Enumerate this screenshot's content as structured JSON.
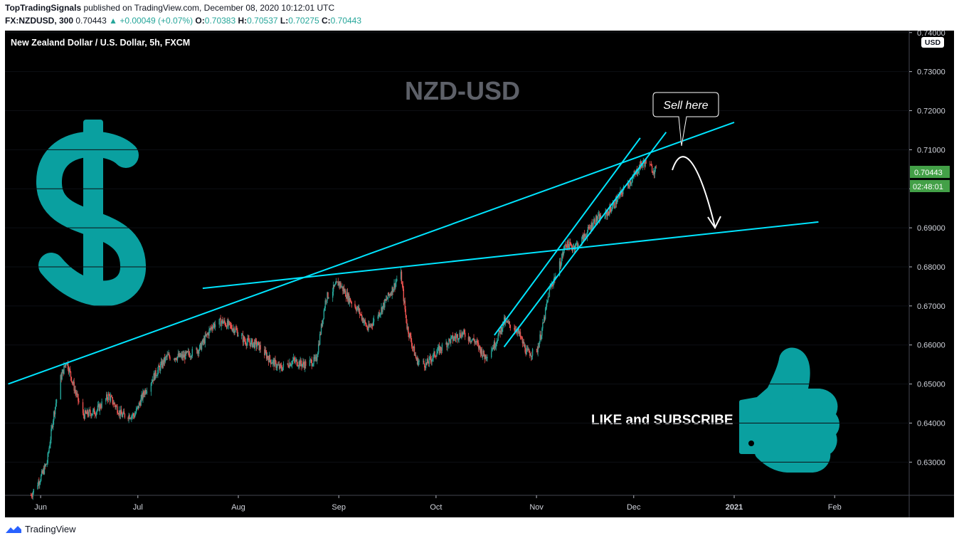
{
  "header": {
    "publisher": "TopTradingSignals",
    "published_text": " published on TradingView.com, December 08, 2020 10:12:01 UTC",
    "symbol_interval": "FX:NZDUSD, 300",
    "last": "0.70443",
    "change": "▲ +0.00049 (+0.07%)",
    "o_label": "O:",
    "o_val": "0.70383",
    "h_label": "H:",
    "h_val": "0.70537",
    "l_label": "L:",
    "l_val": "0.70275",
    "c_label": "C:",
    "c_val": "0.70443"
  },
  "chart_title": "New Zealand Dollar / U.S. Dollar, 5h, FXCM",
  "watermark": "NZD-USD",
  "callout": "Sell here",
  "promo": "LIKE and SUBSCRIBE",
  "currency_badge": "USD",
  "price_badge": "0.70443",
  "countdown_badge": "02:48:01",
  "footer_brand": "TradingView",
  "colors": {
    "background": "#000000",
    "up": "#26a69a",
    "down": "#ef5350",
    "trendline": "#00e5ff",
    "icon": "#0aa0a0",
    "badge": "#43a047"
  },
  "chart_data": {
    "type": "candlestick",
    "title": "New Zealand Dollar / U.S. Dollar, 5h, FXCM",
    "y_axis": {
      "min": 0.6215,
      "max": 0.7405,
      "ticks": [
        0.74,
        0.73,
        0.72,
        0.71,
        0.7,
        0.69,
        0.68,
        0.67,
        0.66,
        0.65,
        0.64,
        0.63
      ],
      "tick_labels": [
        "0.74000",
        "0.73000",
        "0.72000",
        "0.71000",
        "0.70000",
        "0.69000",
        "0.68000",
        "0.67000",
        "0.66000",
        "0.65000",
        "0.64000",
        "0.63000"
      ]
    },
    "x_axis": {
      "start": "2020-05-21",
      "end": "2021-02-24",
      "ticks": [
        {
          "label": "Jun",
          "date": "2020-06-01"
        },
        {
          "label": "Jul",
          "date": "2020-07-01"
        },
        {
          "label": "Aug",
          "date": "2020-08-01"
        },
        {
          "label": "Sep",
          "date": "2020-09-01"
        },
        {
          "label": "Oct",
          "date": "2020-10-01"
        },
        {
          "label": "Nov",
          "date": "2020-11-01"
        },
        {
          "label": "Dec",
          "date": "2020-12-01"
        },
        {
          "label": "2021",
          "date": "2021-01-01",
          "bold": true
        },
        {
          "label": "Feb",
          "date": "2021-02-01"
        }
      ]
    },
    "price_path": [
      [
        "2020-05-29",
        0.6215
      ],
      [
        "2020-06-01",
        0.626
      ],
      [
        "2020-06-03",
        0.63
      ],
      [
        "2020-06-05",
        0.642
      ],
      [
        "2020-06-07",
        0.651
      ],
      [
        "2020-06-09",
        0.656
      ],
      [
        "2020-06-11",
        0.65
      ],
      [
        "2020-06-14",
        0.642
      ],
      [
        "2020-06-18",
        0.643
      ],
      [
        "2020-06-22",
        0.647
      ],
      [
        "2020-06-26",
        0.642
      ],
      [
        "2020-06-30",
        0.642
      ],
      [
        "2020-07-03",
        0.648
      ],
      [
        "2020-07-06",
        0.652
      ],
      [
        "2020-07-10",
        0.657
      ],
      [
        "2020-07-15",
        0.657
      ],
      [
        "2020-07-20",
        0.659
      ],
      [
        "2020-07-24",
        0.665
      ],
      [
        "2020-07-27",
        0.666
      ],
      [
        "2020-07-31",
        0.664
      ],
      [
        "2020-08-03",
        0.661
      ],
      [
        "2020-08-07",
        0.66
      ],
      [
        "2020-08-11",
        0.656
      ],
      [
        "2020-08-14",
        0.654
      ],
      [
        "2020-08-18",
        0.656
      ],
      [
        "2020-08-21",
        0.655
      ],
      [
        "2020-08-25",
        0.656
      ],
      [
        "2020-08-28",
        0.672
      ],
      [
        "2020-09-01",
        0.676
      ],
      [
        "2020-09-04",
        0.672
      ],
      [
        "2020-09-07",
        0.669
      ],
      [
        "2020-09-10",
        0.664
      ],
      [
        "2020-09-14",
        0.669
      ],
      [
        "2020-09-18",
        0.675
      ],
      [
        "2020-09-20",
        0.679
      ],
      [
        "2020-09-22",
        0.665
      ],
      [
        "2020-09-25",
        0.656
      ],
      [
        "2020-09-28",
        0.655
      ],
      [
        "2020-10-01",
        0.658
      ],
      [
        "2020-10-05",
        0.661
      ],
      [
        "2020-10-09",
        0.663
      ],
      [
        "2020-10-13",
        0.661
      ],
      [
        "2020-10-16",
        0.657
      ],
      [
        "2020-10-19",
        0.66
      ],
      [
        "2020-10-22",
        0.666
      ],
      [
        "2020-10-26",
        0.664
      ],
      [
        "2020-10-29",
        0.658
      ],
      [
        "2020-11-01",
        0.658
      ],
      [
        "2020-11-03",
        0.665
      ],
      [
        "2020-11-05",
        0.674
      ],
      [
        "2020-11-08",
        0.68
      ],
      [
        "2020-11-10",
        0.686
      ],
      [
        "2020-11-12",
        0.685
      ],
      [
        "2020-11-14",
        0.686
      ],
      [
        "2020-11-16",
        0.688
      ],
      [
        "2020-11-19",
        0.692
      ],
      [
        "2020-11-22",
        0.693
      ],
      [
        "2020-11-25",
        0.696
      ],
      [
        "2020-11-28",
        0.7
      ],
      [
        "2020-12-01",
        0.703
      ],
      [
        "2020-12-03",
        0.706
      ],
      [
        "2020-12-05",
        0.707
      ],
      [
        "2020-12-06",
        0.7055
      ],
      [
        "2020-12-08",
        0.70443
      ]
    ],
    "trendlines": [
      {
        "from": [
          "2020-05-22",
          0.65
        ],
        "to": [
          "2021-01-01",
          0.717
        ]
      },
      {
        "from": [
          "2020-07-21",
          0.6745
        ],
        "to": [
          "2021-01-27",
          0.6915
        ]
      },
      {
        "from": [
          "2020-10-19",
          0.6625
        ],
        "to": [
          "2020-12-03",
          0.713
        ]
      },
      {
        "from": [
          "2020-10-22",
          0.6595
        ],
        "to": [
          "2020-12-11",
          0.7145
        ]
      }
    ],
    "annotations": [
      {
        "text": "Sell here",
        "at": [
          "2020-12-12",
          0.7095
        ]
      }
    ],
    "projected_move": {
      "from": [
        "2020-12-09",
        0.71
      ],
      "to": [
        "2020-12-23",
        0.689
      ]
    }
  }
}
